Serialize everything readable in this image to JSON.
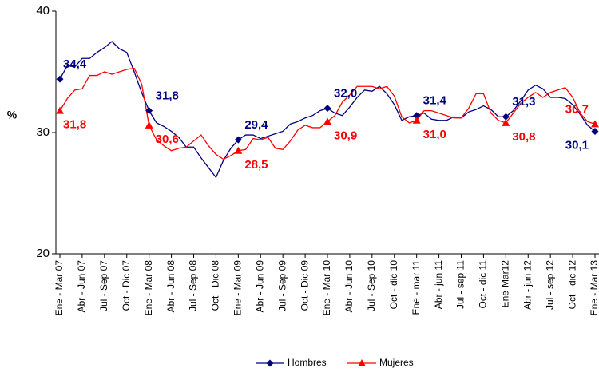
{
  "chart_data": {
    "type": "line",
    "y_label": "%",
    "categories": [
      "Ene - Mar 07",
      null,
      null,
      "Abr - Jun 07",
      null,
      null,
      "Jul - Sep 07",
      null,
      null,
      "Oct - Dic 07",
      null,
      null,
      "Ene - Mar 08",
      null,
      null,
      "Abr - Jun 08",
      null,
      null,
      "Jul - Sep 08",
      null,
      null,
      "Oct - Dic 08",
      null,
      null,
      "Ene - Mar 09",
      null,
      null,
      "Abr - Jun 09",
      null,
      null,
      "Jul - Sep 09",
      null,
      null,
      "Oct - Dic 09",
      null,
      null,
      "Ene - Mar 10",
      null,
      null,
      "Abr - Jun 10",
      null,
      null,
      "Jul - Sep 10",
      null,
      null,
      "Oct - dic 10",
      null,
      null,
      "Ene - mar 11",
      null,
      null,
      "Abr - jun 11",
      null,
      null,
      "Jul - sep 11",
      null,
      null,
      "Oct - dic 11",
      null,
      null,
      "Ene-Mar12",
      null,
      null,
      "Abr - jun 12",
      null,
      null,
      "Jul - sep 12",
      null,
      null,
      "Oct - dic 12",
      null,
      null,
      "Ene - Mar 13"
    ],
    "series": [
      {
        "name": "Hombres",
        "color": "#000080",
        "marker": "diamond",
        "values": [
          34.4,
          35.5,
          35.4,
          36.1,
          36.1,
          36.6,
          37.0,
          37.5,
          36.9,
          36.6,
          35.0,
          33.3,
          31.8,
          30.8,
          30.5,
          30.1,
          29.6,
          28.8,
          28.8,
          27.9,
          27.1,
          26.3,
          27.7,
          28.7,
          29.4,
          29.8,
          29.8,
          29.5,
          29.7,
          29.9,
          30.1,
          30.7,
          30.9,
          31.2,
          31.4,
          31.8,
          32.0,
          31.6,
          31.4,
          32.1,
          32.9,
          33.5,
          33.4,
          33.8,
          33.2,
          32.3,
          31.0,
          31.3,
          31.4,
          31.6,
          31.1,
          31.0,
          31.0,
          31.3,
          31.2,
          31.7,
          31.9,
          32.2,
          31.9,
          31.3,
          31.3,
          31.8,
          32.6,
          33.5,
          33.9,
          33.6,
          32.9,
          32.9,
          32.8,
          32.3,
          31.5,
          30.6,
          30.1
        ],
        "value_labels": [
          "34,4",
          null,
          null,
          null,
          null,
          null,
          null,
          null,
          null,
          null,
          null,
          null,
          "31,8",
          null,
          null,
          null,
          null,
          null,
          null,
          null,
          null,
          null,
          null,
          null,
          "29,4",
          null,
          null,
          null,
          null,
          null,
          null,
          null,
          null,
          null,
          null,
          null,
          "32,0",
          null,
          null,
          null,
          null,
          null,
          null,
          null,
          null,
          null,
          null,
          null,
          "31,4",
          null,
          null,
          null,
          null,
          null,
          null,
          null,
          null,
          null,
          null,
          null,
          "31,3",
          null,
          null,
          null,
          null,
          null,
          null,
          null,
          null,
          null,
          null,
          null,
          "30,1"
        ]
      },
      {
        "name": "Mujeres",
        "color": "#ff0000",
        "marker": "triangle",
        "values": [
          31.8,
          32.8,
          33.5,
          33.6,
          34.7,
          34.7,
          35.0,
          34.8,
          35.0,
          35.2,
          35.3,
          34.0,
          30.6,
          29.4,
          28.9,
          28.5,
          28.7,
          28.8,
          29.3,
          29.8,
          28.9,
          28.2,
          27.8,
          28.1,
          28.5,
          28.6,
          29.5,
          29.4,
          29.6,
          28.7,
          28.6,
          29.3,
          30.2,
          30.6,
          30.4,
          30.4,
          30.9,
          31.4,
          32.5,
          33.1,
          33.8,
          33.8,
          33.8,
          33.6,
          33.8,
          33.0,
          31.3,
          30.8,
          31.0,
          31.8,
          31.8,
          31.6,
          31.4,
          31.2,
          31.2,
          32.0,
          33.2,
          33.2,
          31.6,
          31.0,
          30.8,
          31.6,
          32.4,
          32.9,
          33.3,
          32.9,
          33.3,
          33.5,
          33.7,
          32.9,
          31.6,
          30.9,
          30.7
        ],
        "value_labels": [
          "31,8",
          null,
          null,
          null,
          null,
          null,
          null,
          null,
          null,
          null,
          null,
          null,
          "30,6",
          null,
          null,
          null,
          null,
          null,
          null,
          null,
          null,
          null,
          null,
          null,
          "28,5",
          null,
          null,
          null,
          null,
          null,
          null,
          null,
          null,
          null,
          null,
          null,
          "30,9",
          null,
          null,
          null,
          null,
          null,
          null,
          null,
          null,
          null,
          null,
          null,
          "31,0",
          null,
          null,
          null,
          null,
          null,
          null,
          null,
          null,
          null,
          null,
          null,
          "30,8",
          null,
          null,
          null,
          null,
          null,
          null,
          null,
          null,
          null,
          null,
          null,
          "30,7"
        ]
      }
    ],
    "ylim": [
      20,
      40
    ],
    "yticks": [
      20,
      30,
      40
    ],
    "grid": false,
    "legend": "bottom"
  }
}
